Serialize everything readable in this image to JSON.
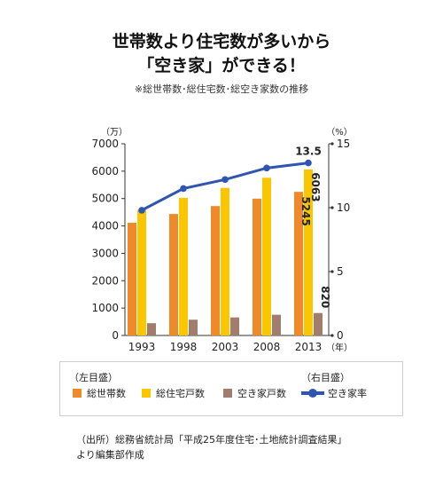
{
  "title_line1": "世帯数より住宅数が多いから",
  "title_line2": "「空き家」ができる！",
  "subtitle": "※総世帯数･総住宅数･総空き家数の推移",
  "chart_data": {
    "type": "bar",
    "categories": [
      "1993",
      "1998",
      "2003",
      "2008",
      "2013"
    ],
    "x_unit": "（年）",
    "y_left": {
      "unit": "（万）",
      "ylim": [
        0,
        7000
      ],
      "ticks": [
        "0",
        "1000",
        "2000",
        "3000",
        "4000",
        "5000",
        "6000",
        "7000"
      ]
    },
    "y_right": {
      "unit": "（%）",
      "ylim": [
        0,
        15
      ],
      "ticks": [
        "0",
        "5",
        "10",
        "15"
      ]
    },
    "series": [
      {
        "name": "総世帯数",
        "axis": "left",
        "color": "#EE8A2A",
        "values": [
          4116,
          4436,
          4726,
          4997,
          5245
        ]
      },
      {
        "name": "総住宅戸数",
        "axis": "left",
        "color": "#F9C600",
        "values": [
          4588,
          5025,
          5389,
          5759,
          6063
        ]
      },
      {
        "name": "空き家戸数",
        "axis": "left",
        "color": "#A07D6C",
        "values": [
          448,
          576,
          659,
          757,
          820
        ]
      },
      {
        "name": "空き家率",
        "axis": "right",
        "type": "line",
        "color": "#2F55B3",
        "values": [
          9.8,
          11.5,
          12.2,
          13.1,
          13.5
        ]
      }
    ],
    "data_labels": {
      "households_2013": "5245",
      "housing_2013": "6063",
      "vacant_2013": "820",
      "rate_2013": "13.5"
    },
    "grid": false
  },
  "legend": {
    "left_axis_label": "（左目盛）",
    "right_axis_label": "（右目盛）",
    "items": [
      "総世帯数",
      "総住宅戸数",
      "空き家戸数",
      "空き家率"
    ]
  },
  "source_line1": "（出所）総務省統計局「平成25年度住宅･土地統計調査結果」",
  "source_line2": "より編集部作成"
}
